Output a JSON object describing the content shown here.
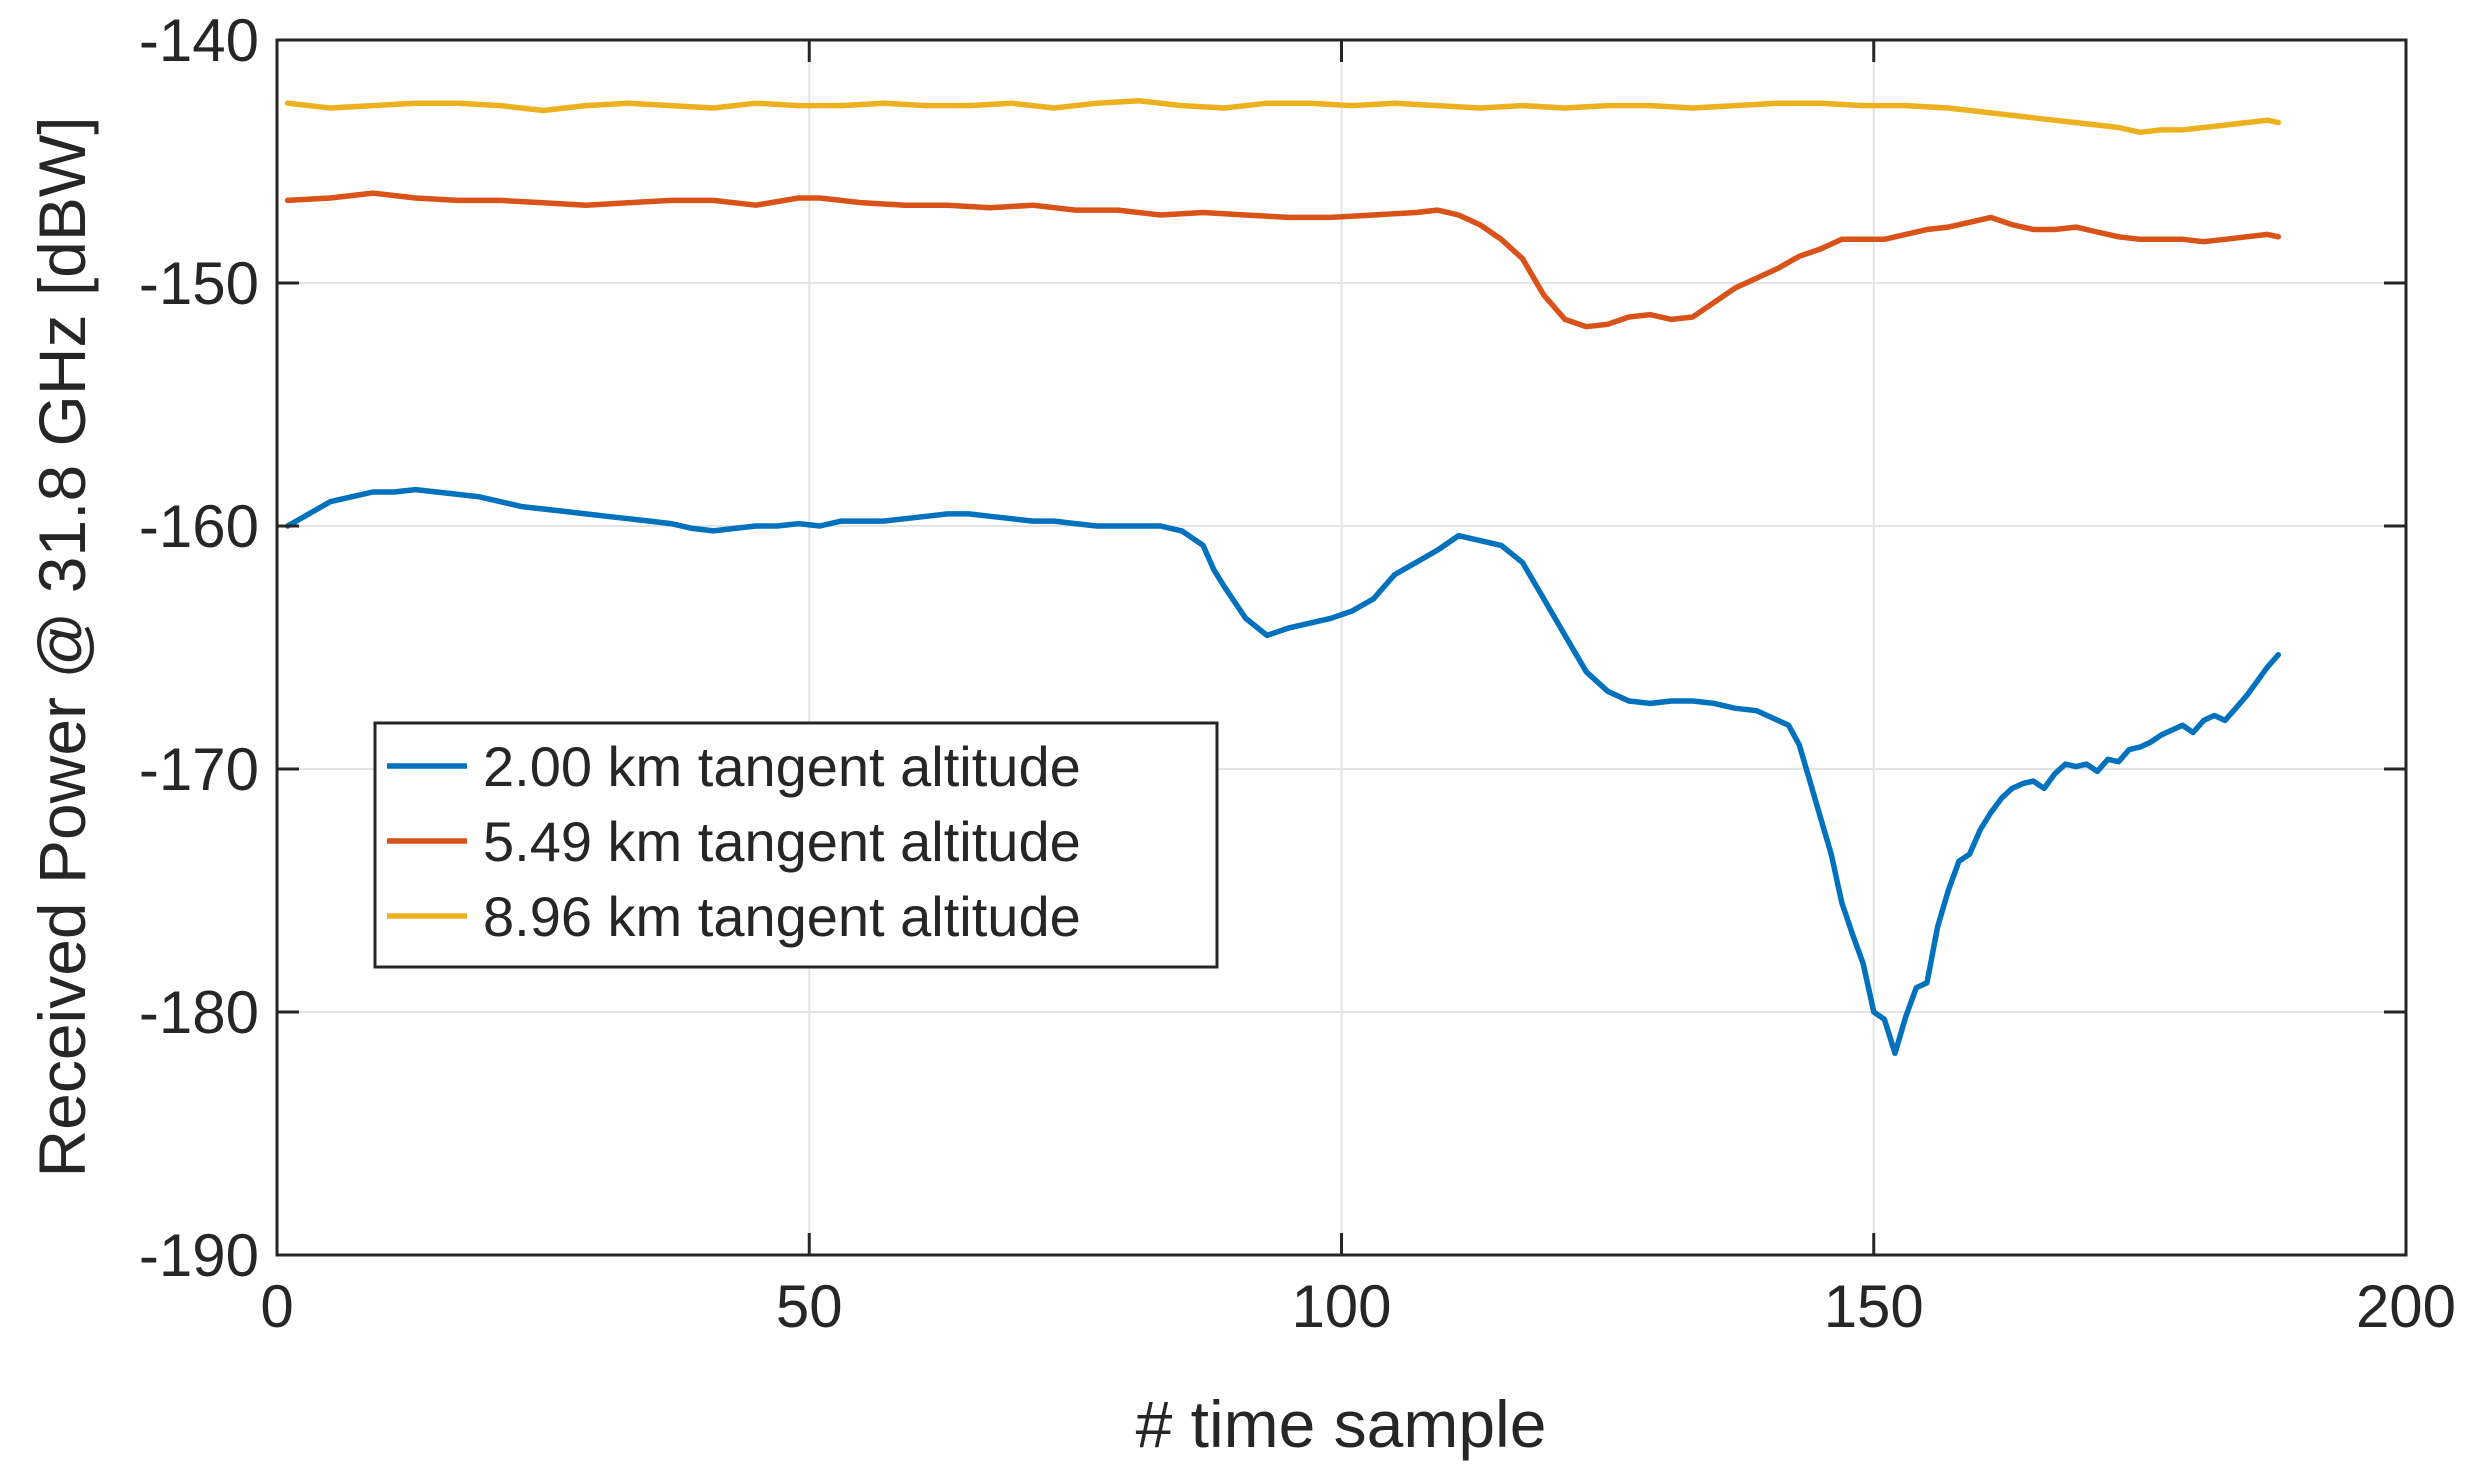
{
  "chart_data": {
    "type": "line",
    "title": "",
    "xlabel": "# time sample",
    "ylabel": "Received Power @ 31.8 GHz [dBW]",
    "xlim": [
      0,
      200
    ],
    "ylim": [
      -190,
      -140
    ],
    "xticks": [
      0,
      50,
      100,
      150,
      200
    ],
    "yticks": [
      -140,
      -150,
      -160,
      -170,
      -180,
      -190
    ],
    "grid": true,
    "legend_position": "middle-left",
    "series": [
      {
        "name": "2.00 km tangent altitude",
        "color": "#0072BD",
        "x": [
          1,
          3,
          5,
          7,
          9,
          11,
          13,
          15,
          17,
          19,
          21,
          23,
          25,
          27,
          29,
          31,
          33,
          35,
          37,
          39,
          41,
          43,
          45,
          47,
          49,
          51,
          53,
          55,
          57,
          59,
          61,
          63,
          65,
          67,
          69,
          71,
          73,
          75,
          77,
          79,
          81,
          83,
          85,
          87,
          88,
          89,
          91,
          93,
          95,
          97,
          99,
          101,
          103,
          105,
          107,
          109,
          111,
          113,
          115,
          117,
          119,
          121,
          123,
          125,
          127,
          129,
          131,
          133,
          135,
          137,
          139,
          141,
          142,
          143,
          144,
          145,
          146,
          147,
          148,
          149,
          150,
          151,
          152,
          153,
          154,
          155,
          156,
          157,
          158,
          159,
          160,
          161,
          162,
          163,
          164,
          165,
          166,
          167,
          168,
          169,
          170,
          171,
          172,
          173,
          174,
          175,
          176,
          177,
          178,
          179,
          180,
          181,
          182,
          183,
          184,
          185,
          186,
          187,
          188
        ],
        "values": [
          -160.0,
          -159.5,
          -159.0,
          -158.8,
          -158.6,
          -158.6,
          -158.5,
          -158.6,
          -158.7,
          -158.8,
          -159.0,
          -159.2,
          -159.3,
          -159.4,
          -159.5,
          -159.6,
          -159.7,
          -159.8,
          -159.9,
          -160.1,
          -160.2,
          -160.1,
          -160.0,
          -160.0,
          -159.9,
          -160.0,
          -159.8,
          -159.8,
          -159.8,
          -159.7,
          -159.6,
          -159.5,
          -159.5,
          -159.6,
          -159.7,
          -159.8,
          -159.8,
          -159.9,
          -160.0,
          -160.0,
          -160.0,
          -160.0,
          -160.2,
          -160.8,
          -161.8,
          -162.5,
          -163.8,
          -164.5,
          -164.2,
          -164.0,
          -163.8,
          -163.5,
          -163.0,
          -162.0,
          -161.5,
          -161.0,
          -160.4,
          -160.6,
          -160.8,
          -161.5,
          -163.0,
          -164.5,
          -166.0,
          -166.8,
          -167.2,
          -167.3,
          -167.2,
          -167.2,
          -167.3,
          -167.5,
          -167.6,
          -168.0,
          -168.2,
          -169.0,
          -170.5,
          -172.0,
          -173.5,
          -175.5,
          -176.8,
          -178.0,
          -180.0,
          -180.3,
          -181.7,
          -180.2,
          -179.0,
          -178.8,
          -176.5,
          -175.0,
          -173.8,
          -173.5,
          -172.5,
          -171.8,
          -171.2,
          -170.8,
          -170.6,
          -170.5,
          -170.8,
          -170.2,
          -169.8,
          -169.9,
          -169.8,
          -170.1,
          -169.6,
          -169.7,
          -169.2,
          -169.1,
          -168.9,
          -168.6,
          -168.4,
          -168.2,
          -168.5,
          -168.0,
          -167.8,
          -168.0,
          -167.5,
          -167.0,
          -166.4,
          -165.8,
          -165.3
        ]
      },
      {
        "name": "5.49 km tangent altitude",
        "color": "#D95319",
        "x": [
          1,
          5,
          9,
          13,
          17,
          21,
          25,
          29,
          33,
          37,
          41,
          45,
          49,
          51,
          55,
          59,
          63,
          67,
          71,
          75,
          79,
          83,
          87,
          91,
          95,
          99,
          103,
          107,
          109,
          111,
          113,
          115,
          117,
          119,
          121,
          123,
          125,
          127,
          129,
          131,
          133,
          135,
          137,
          139,
          141,
          143,
          145,
          147,
          149,
          151,
          153,
          155,
          157,
          159,
          161,
          163,
          165,
          167,
          169,
          171,
          173,
          175,
          177,
          179,
          181,
          183,
          185,
          187,
          188
        ],
        "values": [
          -146.6,
          -146.5,
          -146.3,
          -146.5,
          -146.6,
          -146.6,
          -146.7,
          -146.8,
          -146.7,
          -146.6,
          -146.6,
          -146.8,
          -146.5,
          -146.5,
          -146.7,
          -146.8,
          -146.8,
          -146.9,
          -146.8,
          -147.0,
          -147.0,
          -147.2,
          -147.1,
          -147.2,
          -147.3,
          -147.3,
          -147.2,
          -147.1,
          -147.0,
          -147.2,
          -147.6,
          -148.2,
          -149.0,
          -150.5,
          -151.5,
          -151.8,
          -151.7,
          -151.4,
          -151.3,
          -151.5,
          -151.4,
          -150.8,
          -150.2,
          -149.8,
          -149.4,
          -148.9,
          -148.6,
          -148.2,
          -148.2,
          -148.2,
          -148.0,
          -147.8,
          -147.7,
          -147.5,
          -147.3,
          -147.6,
          -147.8,
          -147.8,
          -147.7,
          -147.9,
          -148.1,
          -148.2,
          -148.2,
          -148.2,
          -148.3,
          -148.2,
          -148.1,
          -148.0,
          -148.1
        ]
      },
      {
        "name": "8.96 km tangent altitude",
        "color": "#EDB120",
        "x": [
          1,
          5,
          9,
          13,
          17,
          21,
          25,
          29,
          33,
          37,
          41,
          45,
          49,
          53,
          57,
          61,
          65,
          69,
          73,
          77,
          81,
          85,
          89,
          93,
          97,
          101,
          105,
          109,
          113,
          117,
          121,
          125,
          129,
          133,
          137,
          141,
          145,
          149,
          153,
          157,
          161,
          165,
          169,
          173,
          175,
          177,
          179,
          181,
          183,
          185,
          187,
          188
        ],
        "values": [
          -142.6,
          -142.8,
          -142.7,
          -142.6,
          -142.6,
          -142.7,
          -142.9,
          -142.7,
          -142.6,
          -142.7,
          -142.8,
          -142.6,
          -142.7,
          -142.7,
          -142.6,
          -142.7,
          -142.7,
          -142.6,
          -142.8,
          -142.6,
          -142.5,
          -142.7,
          -142.8,
          -142.6,
          -142.6,
          -142.7,
          -142.6,
          -142.7,
          -142.8,
          -142.7,
          -142.8,
          -142.7,
          -142.7,
          -142.8,
          -142.7,
          -142.6,
          -142.6,
          -142.7,
          -142.7,
          -142.8,
          -143.0,
          -143.2,
          -143.4,
          -143.6,
          -143.8,
          -143.7,
          -143.7,
          -143.6,
          -143.5,
          -143.4,
          -143.3,
          -143.4
        ]
      }
    ]
  }
}
